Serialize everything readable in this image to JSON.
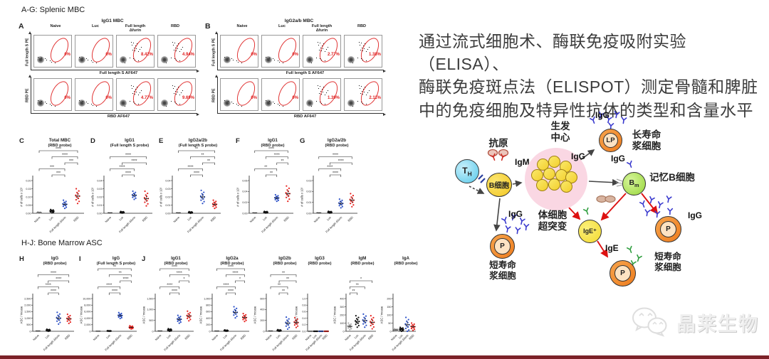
{
  "figure": {
    "section_a_title": "A-G: Splenic MBC",
    "section_h_title": "H-J: Bone Marrow ASC"
  },
  "flow_groups": [
    "Naive",
    "Luc",
    "Full length\nΔfurin",
    "RBD"
  ],
  "flow_panels": [
    {
      "letter": "A",
      "title": "IgG1 MBC",
      "rows": [
        {
          "ylabel": "Full length S PE",
          "xlabel": "Full length S AF647",
          "percentages": [
            "0%",
            "0%",
            "8.42%",
            "4.94%"
          ],
          "positive": [
            false,
            false,
            true,
            true
          ]
        },
        {
          "ylabel": "RBD PE",
          "xlabel": "RBD AF647",
          "percentages": [
            "0%",
            "0%",
            "4.77%",
            "9.69%"
          ],
          "positive": [
            false,
            false,
            true,
            true
          ]
        }
      ]
    },
    {
      "letter": "B",
      "title": "IgG2a/b MBC",
      "rows": [
        {
          "ylabel": "Full length S PE",
          "xlabel": "Full length S AF647",
          "percentages": [
            "0%",
            "0%",
            "2.77%",
            "1.38%"
          ],
          "positive": [
            false,
            false,
            true,
            true
          ]
        },
        {
          "ylabel": "RBD PE",
          "xlabel": "RBD AF647",
          "percentages": [
            "0%",
            "0%",
            "1.39%",
            "2.11%"
          ],
          "positive": [
            false,
            false,
            true,
            true
          ]
        }
      ]
    }
  ],
  "dot_groups": {
    "categories": [
      "Naive",
      "Luc",
      "Full length Δfurin",
      "RBD"
    ],
    "colors": [
      "#b0b0b0",
      "#111111",
      "#2b50c8",
      "#e8231f"
    ]
  },
  "chart_data": [
    {
      "id": "C",
      "type": "scatter",
      "letter": "C",
      "title": "Total MBC",
      "probe": "(RBD probe)",
      "ylabel": "# of cells x 10⁵",
      "ymax": 0.2,
      "yticks": [
        "0.00",
        "0.05",
        "0.10",
        "0.15",
        "0.20"
      ],
      "means": [
        0.004,
        0.013,
        0.055,
        0.105
      ],
      "spread": [
        0.004,
        0.01,
        0.025,
        0.045
      ],
      "sig": [
        {
          "a": 1,
          "b": 2,
          "s": "***"
        },
        {
          "a": 0,
          "b": 2,
          "s": "***"
        },
        {
          "a": 2,
          "b": 3,
          "s": "***"
        },
        {
          "a": 1,
          "b": 3,
          "s": "****"
        },
        {
          "a": 0,
          "b": 3,
          "s": "****"
        }
      ]
    },
    {
      "id": "D",
      "type": "scatter",
      "letter": "D",
      "title": "IgG1",
      "probe": "(Full length S probe)",
      "ylabel": "# of cells x 10⁵",
      "ymax": 0.04,
      "yticks": [
        "0.00",
        "0.01",
        "0.02",
        "0.03",
        "0.04"
      ],
      "means": [
        0.0004,
        0.0012,
        0.022,
        0.018
      ],
      "spread": [
        0.0004,
        0.001,
        0.005,
        0.009
      ],
      "sig": [
        {
          "a": 1,
          "b": 2,
          "s": "****"
        },
        {
          "a": 0,
          "b": 2,
          "s": "****"
        },
        {
          "a": 1,
          "b": 3,
          "s": "****"
        },
        {
          "a": 0,
          "b": 3,
          "s": "****"
        }
      ]
    },
    {
      "id": "E",
      "type": "scatter",
      "letter": "E",
      "title": "IgG2a/2b",
      "probe": "(Full length S probe)",
      "ylabel": "# of cells x 10⁵",
      "ymax": 0.04,
      "yticks": [
        "0.00",
        "0.01",
        "0.02",
        "0.03",
        "0.04"
      ],
      "means": [
        0.0004,
        0.001,
        0.02,
        0.011
      ],
      "spread": [
        0.0004,
        0.001,
        0.008,
        0.005
      ],
      "sig": [
        {
          "a": 1,
          "b": 2,
          "s": "****"
        },
        {
          "a": 0,
          "b": 2,
          "s": "****"
        },
        {
          "a": 2,
          "b": 3,
          "s": "**"
        },
        {
          "a": 1,
          "b": 3,
          "s": "**"
        },
        {
          "a": 0,
          "b": 3,
          "s": "**"
        }
      ]
    },
    {
      "id": "F",
      "type": "scatter",
      "letter": "F",
      "title": "IgG1",
      "probe": "(RBD probe)",
      "ylabel": "# of cells x 10⁵",
      "ymax": 0.06,
      "yticks": [
        "0.00",
        "0.02",
        "0.04",
        "0.06"
      ],
      "means": [
        0.0005,
        0.002,
        0.028,
        0.036
      ],
      "spread": [
        0.0005,
        0.0015,
        0.006,
        0.014
      ],
      "sig": [
        {
          "a": 1,
          "b": 2,
          "s": "**"
        },
        {
          "a": 0,
          "b": 2,
          "s": "**"
        },
        {
          "a": 2,
          "b": 3,
          "s": "**"
        },
        {
          "a": 1,
          "b": 3,
          "s": "****"
        },
        {
          "a": 0,
          "b": 3,
          "s": "****"
        }
      ]
    },
    {
      "id": "G",
      "type": "scatter",
      "letter": "G",
      "title": "IgG2a/2b",
      "probe": "(RBD probe)",
      "ylabel": "# of cells x 10⁵",
      "ymax": 0.03,
      "yticks": [
        "0.00",
        "0.01",
        "0.02",
        "0.03"
      ],
      "means": [
        0.0003,
        0.001,
        0.009,
        0.012
      ],
      "spread": [
        0.0003,
        0.0008,
        0.004,
        0.006
      ],
      "sig": [
        {
          "a": 1,
          "b": 2,
          "s": "****"
        },
        {
          "a": 0,
          "b": 2,
          "s": "****"
        },
        {
          "a": 1,
          "b": 3,
          "s": "****"
        },
        {
          "a": 0,
          "b": 3,
          "s": "****"
        }
      ]
    },
    {
      "id": "H",
      "type": "scatter",
      "letter": "H",
      "title": "IgG",
      "probe": "(RBD probe)",
      "ylabel": "ASC / mouse",
      "ymax": 2500,
      "yticks": [
        "0",
        "500",
        "1,000",
        "1,500",
        "2,000",
        "2,500"
      ],
      "means": [
        15,
        80,
        1000,
        950
      ],
      "spread": [
        15,
        80,
        450,
        350
      ],
      "sig": [
        {
          "a": 1,
          "b": 2,
          "s": "****"
        },
        {
          "a": 0,
          "b": 2,
          "s": "****"
        },
        {
          "a": 1,
          "b": 3,
          "s": "****"
        },
        {
          "a": 0,
          "b": 3,
          "s": "****"
        }
      ]
    },
    {
      "id": "I",
      "type": "scatter",
      "letter": "I",
      "title": "IgG",
      "probe": "(Full length S probe)",
      "ylabel": "ASC / mouse",
      "ymax": 10000,
      "yticks": [
        "0",
        "2,000",
        "4,000",
        "6,000",
        "8,000",
        "10,000"
      ],
      "means": [
        20,
        100,
        4800,
        1200
      ],
      "spread": [
        20,
        100,
        900,
        500
      ],
      "sig": [
        {
          "a": 1,
          "b": 2,
          "s": "****"
        },
        {
          "a": 0,
          "b": 2,
          "s": "****"
        },
        {
          "a": 2,
          "b": 3,
          "s": "****"
        },
        {
          "a": 1,
          "b": 3,
          "s": "**"
        },
        {
          "a": 0,
          "b": 3,
          "s": "**"
        }
      ]
    },
    {
      "id": "J1",
      "type": "scatter",
      "letter": "J",
      "title": "IgG1",
      "probe": "(RBD probe)",
      "ylabel": "ASC / mouse",
      "ymax": 1500,
      "yticks": [
        "0",
        "500",
        "1,000",
        "1,500"
      ],
      "means": [
        10,
        60,
        550,
        700
      ],
      "spread": [
        10,
        60,
        180,
        220
      ],
      "sig": [
        {
          "a": 1,
          "b": 2,
          "s": "****"
        },
        {
          "a": 0,
          "b": 2,
          "s": "****"
        },
        {
          "a": 2,
          "b": 3,
          "s": "*"
        },
        {
          "a": 1,
          "b": 3,
          "s": "****"
        },
        {
          "a": 0,
          "b": 3,
          "s": "****"
        }
      ]
    },
    {
      "id": "J2",
      "type": "scatter",
      "letter": "",
      "title": "IgG2a",
      "probe": "(RBD probe)",
      "ylabel": "ASC / mouse",
      "ymax": 1000,
      "yticks": [
        "0",
        "200",
        "400",
        "600",
        "800",
        "1,000"
      ],
      "means": [
        5,
        20,
        580,
        420
      ],
      "spread": [
        5,
        20,
        170,
        120
      ],
      "sig": [
        {
          "a": 1,
          "b": 2,
          "s": "****"
        },
        {
          "a": 0,
          "b": 2,
          "s": "****"
        },
        {
          "a": 2,
          "b": 3,
          "s": "*"
        },
        {
          "a": 1,
          "b": 3,
          "s": "****"
        },
        {
          "a": 0,
          "b": 3,
          "s": "****"
        }
      ]
    },
    {
      "id": "J3",
      "type": "scatter",
      "letter": "",
      "title": "IgG2b",
      "probe": "(RBD probe)",
      "ylabel": "ASC / mouse",
      "ymax": 600,
      "yticks": [
        "0",
        "200",
        "400",
        "600"
      ],
      "means": [
        4,
        15,
        150,
        160
      ],
      "spread": [
        4,
        15,
        110,
        90
      ],
      "sig": [
        {
          "a": 1,
          "b": 2,
          "s": "**"
        },
        {
          "a": 0,
          "b": 2,
          "s": "**"
        },
        {
          "a": 1,
          "b": 3,
          "s": "**"
        },
        {
          "a": 0,
          "b": 3,
          "s": "**"
        }
      ]
    },
    {
      "id": "J4",
      "type": "scatter",
      "letter": "",
      "title": "IgG3",
      "probe": "(RBD probe)",
      "ylabel": "ASC / mouse",
      "ymax": 1.0,
      "yticks": [
        "0.0",
        "0.2",
        "0.4",
        "0.6",
        "0.8",
        "1.0"
      ],
      "means": [
        0,
        0,
        0,
        0
      ],
      "spread": [
        0,
        0,
        0,
        0
      ],
      "sig": []
    },
    {
      "id": "J5",
      "type": "scatter",
      "letter": "",
      "title": "IgM",
      "probe": "(RBD probe)",
      "ylabel": "ASC / mouse",
      "ymax": 400,
      "yticks": [
        "0",
        "100",
        "200",
        "300",
        "400"
      ],
      "means": [
        60,
        120,
        130,
        110
      ],
      "spread": [
        40,
        70,
        80,
        80
      ],
      "sig": [
        {
          "a": 0,
          "b": 1,
          "s": "**"
        },
        {
          "a": 0,
          "b": 2,
          "s": "**"
        },
        {
          "a": 0,
          "b": 3,
          "s": "*"
        }
      ]
    },
    {
      "id": "J6",
      "type": "scatter",
      "letter": "",
      "title": "IgA",
      "probe": "(RBD probe)",
      "ylabel": "ASC / mouse",
      "ymax": 200,
      "yticks": [
        "0",
        "50",
        "100",
        "150",
        "200"
      ],
      "means": [
        8,
        12,
        40,
        28
      ],
      "spread": [
        8,
        12,
        45,
        22
      ],
      "sig": []
    }
  ],
  "annotation": {
    "text": "通过流式细胞术、酶联免疫吸附实验（ELISA）、\n酶联免疫斑点法（ELISPOT）测定骨髓和脾脏\n中的免疫细胞及特异性抗体的类型和含量水平"
  },
  "diagram": {
    "antigen_label": "抗原",
    "igm_label": "IgM",
    "th_main": "T",
    "th_sub": "H",
    "b_cell_label": "B细胞",
    "gc_label": "生发\n中心",
    "igg_gc": "IgG",
    "lp_label": "LP",
    "igg_lp": "IgG",
    "long_lived_label": "长寿命\n浆细胞",
    "bm_main": "B",
    "bm_sub": "m",
    "igg_bm": "IgG",
    "memory_label": "记忆B细胞",
    "shm_label": "体细胞\n超突变",
    "igg_p_left": "IgG",
    "p_left_label": "P",
    "short_lived_left_label": "短寿命\n浆细胞",
    "ige_cell_label": "IgE⁺",
    "igg_p_right": "IgG",
    "p_right_top_label": "P",
    "ige_label": "IgE",
    "p_right_bottom_label": "P",
    "short_lived_right_label": "短寿命\n浆细胞",
    "antibody_colors": {
      "igg": "#3a3ace",
      "igg_dark": "#4343c0",
      "ige": "#2f9e3f",
      "receptor": "#d03028"
    }
  },
  "watermark": {
    "text": "晶莱生物"
  },
  "footer": {
    "bar_color": "#7c2228"
  }
}
